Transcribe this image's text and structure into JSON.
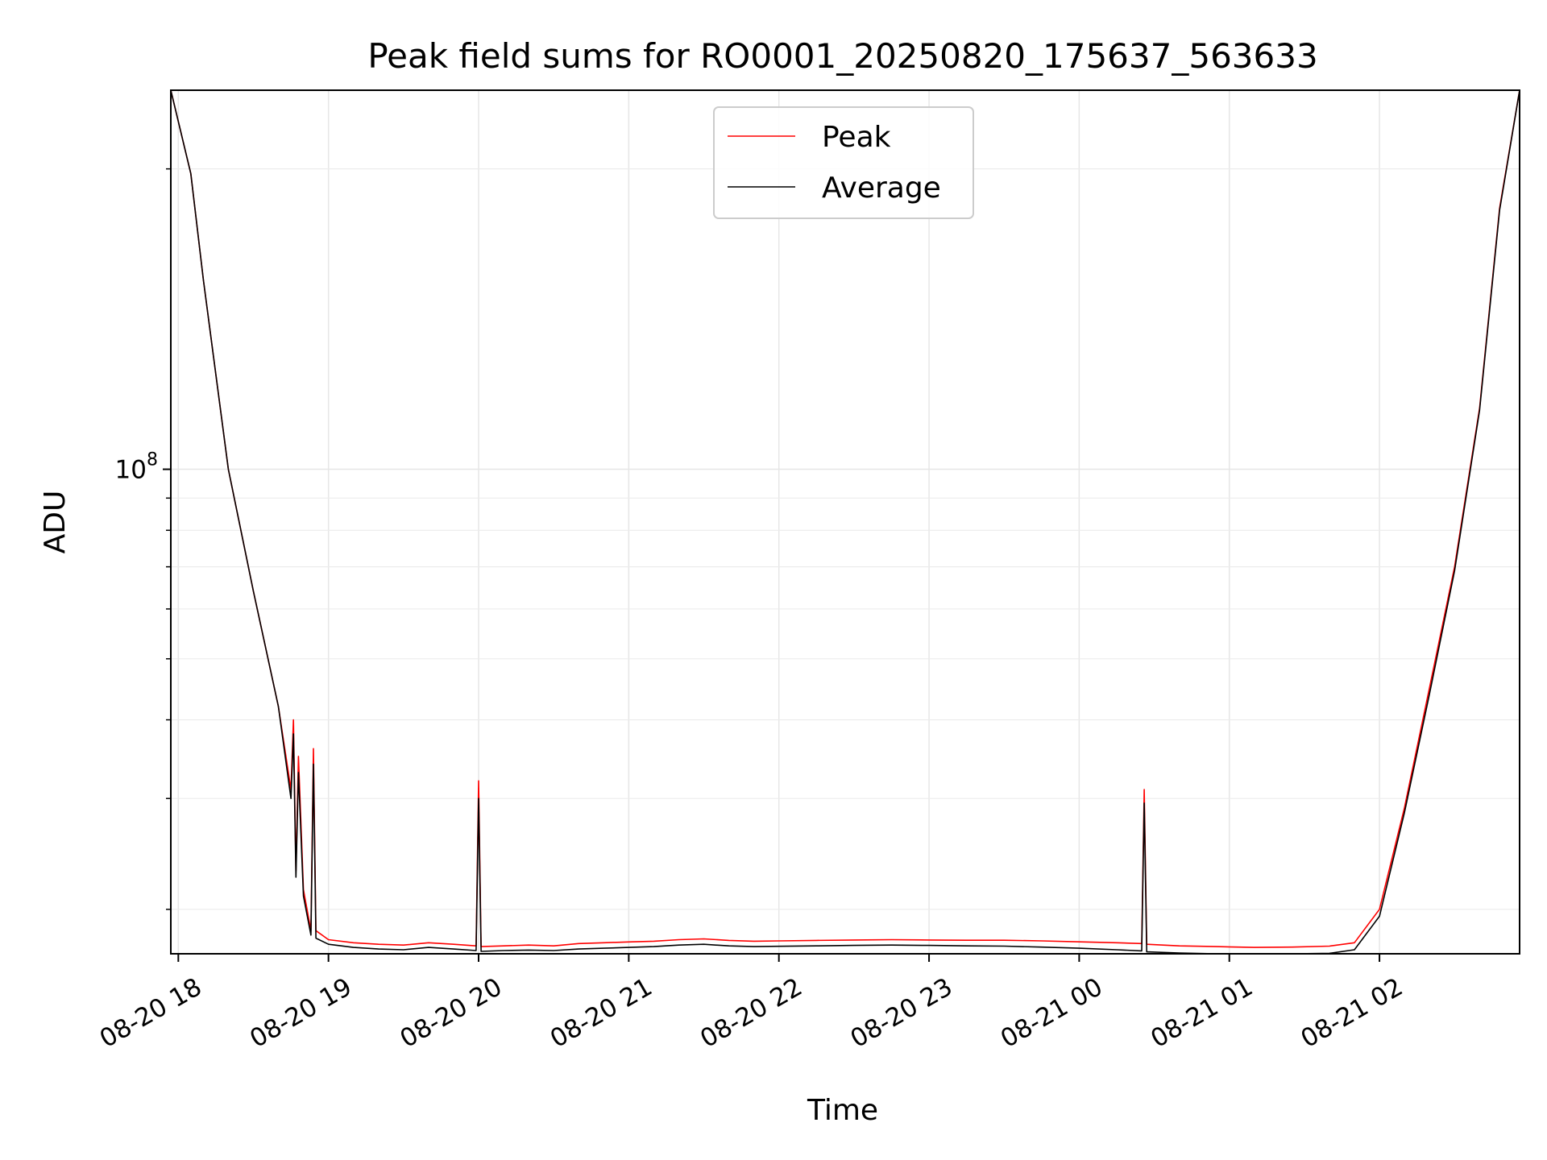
{
  "chart_data": {
    "type": "line",
    "title": "Peak field sums for RO0001_20250820_175637_563633",
    "xlabel": "Time",
    "ylabel": "ADU",
    "y_scale": "log",
    "ylim": [
      17000000,
      400000000
    ],
    "y_major_ticks": [
      {
        "value": 100000000,
        "base": "10",
        "exp": "8"
      }
    ],
    "y_minor_ticks": [
      20000000,
      30000000,
      40000000,
      50000000,
      60000000,
      70000000,
      80000000,
      90000000,
      300000000
    ],
    "xlim": [
      "2025-08-20T17:57:00",
      "2025-08-21T02:56:00"
    ],
    "x_ticks": [
      {
        "value": "2025-08-20T18:00:00",
        "label": "08-20 18"
      },
      {
        "value": "2025-08-20T19:00:00",
        "label": "08-20 19"
      },
      {
        "value": "2025-08-20T20:00:00",
        "label": "08-20 20"
      },
      {
        "value": "2025-08-20T21:00:00",
        "label": "08-20 21"
      },
      {
        "value": "2025-08-20T22:00:00",
        "label": "08-20 22"
      },
      {
        "value": "2025-08-20T23:00:00",
        "label": "08-20 23"
      },
      {
        "value": "2025-08-21T00:00:00",
        "label": "08-21 00"
      },
      {
        "value": "2025-08-21T01:00:00",
        "label": "08-21 01"
      },
      {
        "value": "2025-08-21T02:00:00",
        "label": "08-21 02"
      }
    ],
    "grid": true,
    "legend_position": "top-center",
    "series": [
      {
        "name": "Peak",
        "color": "#ff0000",
        "x": [
          "2025-08-20T17:57:00",
          "2025-08-20T18:05:00",
          "2025-08-20T18:10:00",
          "2025-08-20T18:20:00",
          "2025-08-20T18:30:00",
          "2025-08-20T18:40:00",
          "2025-08-20T18:45:00",
          "2025-08-20T18:46:00",
          "2025-08-20T18:47:00",
          "2025-08-20T18:48:00",
          "2025-08-20T18:50:00",
          "2025-08-20T18:53:00",
          "2025-08-20T18:54:00",
          "2025-08-20T18:55:00",
          "2025-08-20T19:00:00",
          "2025-08-20T19:10:00",
          "2025-08-20T19:20:00",
          "2025-08-20T19:30:00",
          "2025-08-20T19:40:00",
          "2025-08-20T19:50:00",
          "2025-08-20T19:59:00",
          "2025-08-20T20:00:00",
          "2025-08-20T20:01:00",
          "2025-08-20T20:10:00",
          "2025-08-20T20:20:00",
          "2025-08-20T20:30:00",
          "2025-08-20T20:40:00",
          "2025-08-20T20:50:00",
          "2025-08-20T21:00:00",
          "2025-08-20T21:10:00",
          "2025-08-20T21:20:00",
          "2025-08-20T21:30:00",
          "2025-08-20T21:40:00",
          "2025-08-20T21:50:00",
          "2025-08-20T22:00:00",
          "2025-08-20T22:15:00",
          "2025-08-20T22:30:00",
          "2025-08-20T22:45:00",
          "2025-08-20T23:00:00",
          "2025-08-20T23:15:00",
          "2025-08-20T23:30:00",
          "2025-08-20T23:45:00",
          "2025-08-21T00:00:00",
          "2025-08-21T00:15:00",
          "2025-08-21T00:25:00",
          "2025-08-21T00:26:00",
          "2025-08-21T00:27:00",
          "2025-08-21T00:40:00",
          "2025-08-21T00:55:00",
          "2025-08-21T01:10:00",
          "2025-08-21T01:25:00",
          "2025-08-21T01:40:00",
          "2025-08-21T01:50:00",
          "2025-08-21T02:00:00",
          "2025-08-21T02:10:00",
          "2025-08-21T02:20:00",
          "2025-08-21T02:30:00",
          "2025-08-21T02:40:00",
          "2025-08-21T02:48:00",
          "2025-08-21T02:56:00"
        ],
        "y": [
          400000000,
          295000000,
          200000000,
          100000000,
          64000000,
          42000000,
          31000000,
          40000000,
          23000000,
          35000000,
          21500000,
          18500000,
          36000000,
          18500000,
          17900000,
          17700000,
          17600000,
          17550000,
          17700000,
          17600000,
          17500000,
          32000000,
          17450000,
          17500000,
          17550000,
          17500000,
          17650000,
          17700000,
          17750000,
          17800000,
          17900000,
          17950000,
          17850000,
          17800000,
          17820000,
          17850000,
          17880000,
          17900000,
          17880000,
          17860000,
          17860000,
          17820000,
          17760000,
          17700000,
          17650000,
          31000000,
          17600000,
          17500000,
          17450000,
          17400000,
          17420000,
          17480000,
          17700000,
          20000000,
          29000000,
          45000000,
          70000000,
          125000000,
          260000000,
          400000000
        ]
      },
      {
        "name": "Average",
        "color": "#000000",
        "x": [
          "2025-08-20T17:57:00",
          "2025-08-20T18:05:00",
          "2025-08-20T18:10:00",
          "2025-08-20T18:20:00",
          "2025-08-20T18:30:00",
          "2025-08-20T18:40:00",
          "2025-08-20T18:45:00",
          "2025-08-20T18:46:00",
          "2025-08-20T18:47:00",
          "2025-08-20T18:48:00",
          "2025-08-20T18:50:00",
          "2025-08-20T18:53:00",
          "2025-08-20T18:54:00",
          "2025-08-20T18:55:00",
          "2025-08-20T19:00:00",
          "2025-08-20T19:10:00",
          "2025-08-20T19:20:00",
          "2025-08-20T19:30:00",
          "2025-08-20T19:40:00",
          "2025-08-20T19:50:00",
          "2025-08-20T19:59:00",
          "2025-08-20T20:00:00",
          "2025-08-20T20:01:00",
          "2025-08-20T20:10:00",
          "2025-08-20T20:20:00",
          "2025-08-20T20:30:00",
          "2025-08-20T20:40:00",
          "2025-08-20T20:50:00",
          "2025-08-20T21:00:00",
          "2025-08-20T21:10:00",
          "2025-08-20T21:20:00",
          "2025-08-20T21:30:00",
          "2025-08-20T21:40:00",
          "2025-08-20T21:50:00",
          "2025-08-20T22:00:00",
          "2025-08-20T22:15:00",
          "2025-08-20T22:30:00",
          "2025-08-20T22:45:00",
          "2025-08-20T23:00:00",
          "2025-08-20T23:15:00",
          "2025-08-20T23:30:00",
          "2025-08-20T23:45:00",
          "2025-08-21T00:00:00",
          "2025-08-21T00:15:00",
          "2025-08-21T00:25:00",
          "2025-08-21T00:26:00",
          "2025-08-21T00:27:00",
          "2025-08-21T00:40:00",
          "2025-08-21T00:55:00",
          "2025-08-21T01:10:00",
          "2025-08-21T01:25:00",
          "2025-08-21T01:40:00",
          "2025-08-21T01:50:00",
          "2025-08-21T02:00:00",
          "2025-08-21T02:10:00",
          "2025-08-21T02:20:00",
          "2025-08-21T02:30:00",
          "2025-08-21T02:40:00",
          "2025-08-21T02:48:00",
          "2025-08-21T02:56:00"
        ],
        "y": [
          400000000,
          295000000,
          200000000,
          100000000,
          64000000,
          42000000,
          30000000,
          38000000,
          22500000,
          33000000,
          21000000,
          18200000,
          34000000,
          18000000,
          17600000,
          17400000,
          17300000,
          17250000,
          17400000,
          17300000,
          17200000,
          30000000,
          17150000,
          17200000,
          17230000,
          17200000,
          17300000,
          17350000,
          17400000,
          17450000,
          17550000,
          17600000,
          17500000,
          17450000,
          17470000,
          17500000,
          17530000,
          17550000,
          17530000,
          17500000,
          17480000,
          17420000,
          17350000,
          17250000,
          17180000,
          29500000,
          17120000,
          17050000,
          17000000,
          16950000,
          16970000,
          17030000,
          17250000,
          19500000,
          28500000,
          44000000,
          69000000,
          124000000,
          258000000,
          400000000
        ]
      }
    ]
  }
}
